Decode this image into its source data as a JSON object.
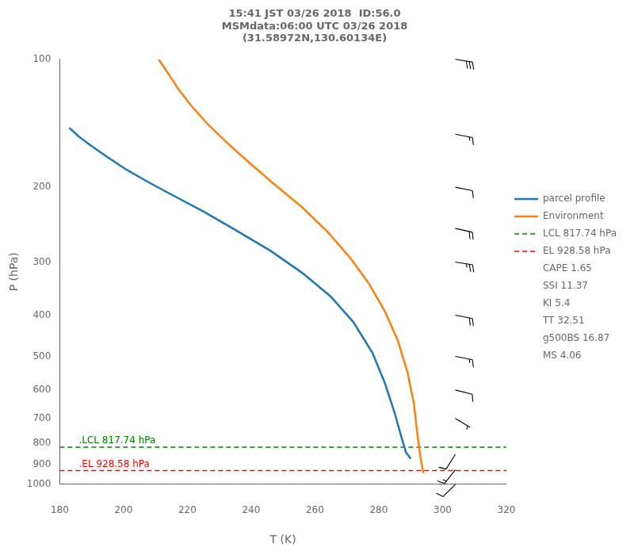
{
  "chart_data": {
    "type": "line",
    "title": "15:41 JST 03/26 2018  ID:56.0\nMSMdata:06:00 UTC 03/26 2018\n(31.58972N,130.60134E)",
    "xlabel": "T (K)",
    "ylabel": "P (hPa)",
    "log": "y",
    "xlim": [
      180,
      320
    ],
    "ylim": [
      1000,
      100
    ],
    "xticks": [
      180,
      200,
      220,
      240,
      260,
      280,
      300,
      320
    ],
    "yticks": [
      100,
      200,
      300,
      400,
      500,
      600,
      700,
      800,
      900,
      1000
    ],
    "grid": false,
    "legend": "right",
    "series": [
      {
        "name": "parcel profile",
        "color": "#1f77b4",
        "x": [
          183,
          186,
          190,
          195,
          201,
          208,
          216,
          225,
          235,
          246,
          256,
          265,
          272,
          278,
          282,
          285,
          287,
          288.5,
          290
        ],
        "values": [
          145,
          152,
          160,
          170,
          182,
          195,
          210,
          228,
          252,
          282,
          318,
          362,
          415,
          490,
          580,
          680,
          770,
          840,
          870
        ]
      },
      {
        "name": "Environment",
        "color": "#ff7f0e",
        "x": [
          211,
          214,
          217,
          221,
          226,
          232,
          239,
          247,
          256,
          264,
          271,
          277,
          282,
          286,
          289,
          291,
          292,
          293,
          294
        ],
        "values": [
          100,
          108,
          117,
          128,
          141,
          156,
          174,
          196,
          223,
          255,
          293,
          338,
          393,
          460,
          545,
          645,
          752,
          858,
          940
        ]
      }
    ],
    "reference_lines": [
      {
        "name": "LCL 817.74 hPa",
        "value": 817.74,
        "color": "green",
        "line_style": "dashed"
      },
      {
        "name": "EL 928.58 hPa",
        "value": 928.58,
        "color": "red",
        "line_style": "dashed"
      }
    ],
    "annotations": [
      {
        "text": ".LCL 817.74 hPa",
        "x": 186,
        "y": 817.74,
        "color": "green"
      },
      {
        "text": ".EL 928.58 hPa",
        "x": 186,
        "y": 928.58,
        "color": "red"
      }
    ],
    "legend_notes": [
      "CAPE 1.65",
      "SSI 11.37",
      "KI 5.4",
      "TT 32.51",
      "g500BS 16.87",
      "MS 4.06"
    ],
    "wind_barbs": {
      "x": 304,
      "pressures": [
        100,
        150,
        200,
        250,
        300,
        400,
        500,
        600,
        700,
        850,
        925,
        1000
      ],
      "u": [
        -30,
        -15,
        -10,
        -18,
        -25,
        -20,
        -15,
        -8,
        -5,
        5,
        8,
        8
      ],
      "v": [
        5,
        3,
        2,
        4,
        4,
        4,
        3,
        2,
        3,
        8,
        10,
        8
      ]
    }
  }
}
